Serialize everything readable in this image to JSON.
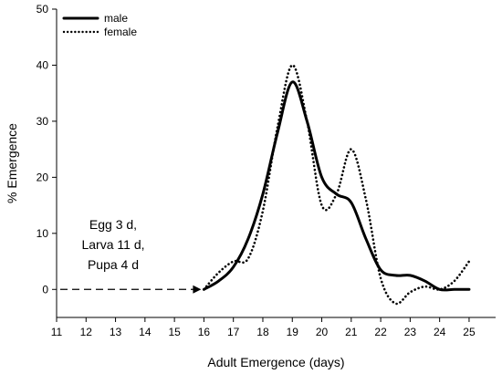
{
  "chart_data": {
    "type": "line",
    "title": "",
    "xlabel": "Adult Emergence (days)",
    "ylabel": "% Emergence",
    "xlim": [
      11,
      25.9
    ],
    "ylim": [
      -5,
      50
    ],
    "xticks": [
      11,
      12,
      13,
      14,
      15,
      16,
      17,
      18,
      19,
      20,
      21,
      22,
      23,
      24,
      25
    ],
    "yticks": [
      0,
      10,
      20,
      30,
      40,
      50
    ],
    "grid": false,
    "legend_position": "top-left",
    "series": [
      {
        "name": "male",
        "style": "solid",
        "color": "#000000",
        "x": [
          16,
          16.5,
          17,
          17.5,
          18,
          18.5,
          19,
          19.5,
          20,
          20.5,
          21,
          21.5,
          22,
          22.5,
          23,
          23.5,
          24,
          24.5,
          25
        ],
        "y": [
          0,
          1.5,
          4,
          9,
          17,
          28,
          37,
          30,
          20,
          17,
          15.5,
          9,
          3.5,
          2.5,
          2.5,
          1.5,
          0,
          0,
          0
        ]
      },
      {
        "name": "female",
        "style": "dotted",
        "color": "#000000",
        "x": [
          16,
          16.5,
          17,
          17.5,
          18,
          18.5,
          19,
          19.5,
          20,
          20.5,
          21,
          21.5,
          22,
          22.5,
          23,
          23.5,
          24,
          24.5,
          25
        ],
        "y": [
          0,
          3,
          5,
          5.5,
          14,
          29,
          40,
          30,
          15,
          17,
          25,
          16,
          2,
          -2.5,
          -0.5,
          0.5,
          0,
          1.5,
          5
        ]
      }
    ],
    "annotation": {
      "lines": [
        "Egg 3 d,",
        "Larva 11 d,",
        "Pupa 4 d"
      ],
      "arrow": {
        "from_x": 11,
        "to_x": 16,
        "y": 0,
        "style": "dashed"
      }
    }
  }
}
